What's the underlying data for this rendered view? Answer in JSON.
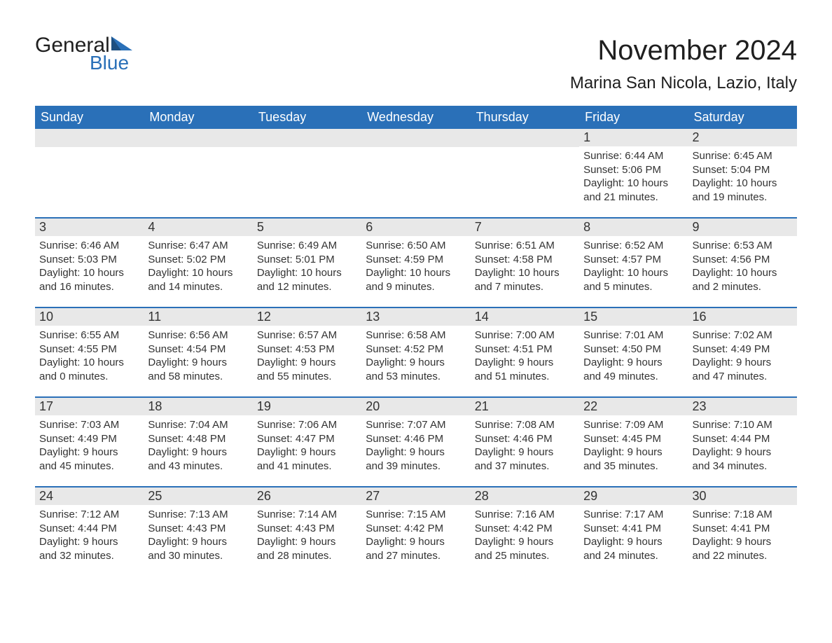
{
  "logo": {
    "word1": "General",
    "word2": "Blue"
  },
  "title": "November 2024",
  "location": "Marina San Nicola, Lazio, Italy",
  "colors": {
    "header_bg": "#2a70b8",
    "header_text": "#ffffff",
    "daynum_bg": "#e8e8e8",
    "rule": "#2a70b8",
    "body_text": "#333333",
    "page_bg": "#ffffff",
    "logo_blue": "#2a70b8"
  },
  "day_names": [
    "Sunday",
    "Monday",
    "Tuesday",
    "Wednesday",
    "Thursday",
    "Friday",
    "Saturday"
  ],
  "weeks": [
    [
      null,
      null,
      null,
      null,
      null,
      {
        "n": "1",
        "sunrise": "Sunrise: 6:44 AM",
        "sunset": "Sunset: 5:06 PM",
        "day1": "Daylight: 10 hours",
        "day2": "and 21 minutes."
      },
      {
        "n": "2",
        "sunrise": "Sunrise: 6:45 AM",
        "sunset": "Sunset: 5:04 PM",
        "day1": "Daylight: 10 hours",
        "day2": "and 19 minutes."
      }
    ],
    [
      {
        "n": "3",
        "sunrise": "Sunrise: 6:46 AM",
        "sunset": "Sunset: 5:03 PM",
        "day1": "Daylight: 10 hours",
        "day2": "and 16 minutes."
      },
      {
        "n": "4",
        "sunrise": "Sunrise: 6:47 AM",
        "sunset": "Sunset: 5:02 PM",
        "day1": "Daylight: 10 hours",
        "day2": "and 14 minutes."
      },
      {
        "n": "5",
        "sunrise": "Sunrise: 6:49 AM",
        "sunset": "Sunset: 5:01 PM",
        "day1": "Daylight: 10 hours",
        "day2": "and 12 minutes."
      },
      {
        "n": "6",
        "sunrise": "Sunrise: 6:50 AM",
        "sunset": "Sunset: 4:59 PM",
        "day1": "Daylight: 10 hours",
        "day2": "and 9 minutes."
      },
      {
        "n": "7",
        "sunrise": "Sunrise: 6:51 AM",
        "sunset": "Sunset: 4:58 PM",
        "day1": "Daylight: 10 hours",
        "day2": "and 7 minutes."
      },
      {
        "n": "8",
        "sunrise": "Sunrise: 6:52 AM",
        "sunset": "Sunset: 4:57 PM",
        "day1": "Daylight: 10 hours",
        "day2": "and 5 minutes."
      },
      {
        "n": "9",
        "sunrise": "Sunrise: 6:53 AM",
        "sunset": "Sunset: 4:56 PM",
        "day1": "Daylight: 10 hours",
        "day2": "and 2 minutes."
      }
    ],
    [
      {
        "n": "10",
        "sunrise": "Sunrise: 6:55 AM",
        "sunset": "Sunset: 4:55 PM",
        "day1": "Daylight: 10 hours",
        "day2": "and 0 minutes."
      },
      {
        "n": "11",
        "sunrise": "Sunrise: 6:56 AM",
        "sunset": "Sunset: 4:54 PM",
        "day1": "Daylight: 9 hours",
        "day2": "and 58 minutes."
      },
      {
        "n": "12",
        "sunrise": "Sunrise: 6:57 AM",
        "sunset": "Sunset: 4:53 PM",
        "day1": "Daylight: 9 hours",
        "day2": "and 55 minutes."
      },
      {
        "n": "13",
        "sunrise": "Sunrise: 6:58 AM",
        "sunset": "Sunset: 4:52 PM",
        "day1": "Daylight: 9 hours",
        "day2": "and 53 minutes."
      },
      {
        "n": "14",
        "sunrise": "Sunrise: 7:00 AM",
        "sunset": "Sunset: 4:51 PM",
        "day1": "Daylight: 9 hours",
        "day2": "and 51 minutes."
      },
      {
        "n": "15",
        "sunrise": "Sunrise: 7:01 AM",
        "sunset": "Sunset: 4:50 PM",
        "day1": "Daylight: 9 hours",
        "day2": "and 49 minutes."
      },
      {
        "n": "16",
        "sunrise": "Sunrise: 7:02 AM",
        "sunset": "Sunset: 4:49 PM",
        "day1": "Daylight: 9 hours",
        "day2": "and 47 minutes."
      }
    ],
    [
      {
        "n": "17",
        "sunrise": "Sunrise: 7:03 AM",
        "sunset": "Sunset: 4:49 PM",
        "day1": "Daylight: 9 hours",
        "day2": "and 45 minutes."
      },
      {
        "n": "18",
        "sunrise": "Sunrise: 7:04 AM",
        "sunset": "Sunset: 4:48 PM",
        "day1": "Daylight: 9 hours",
        "day2": "and 43 minutes."
      },
      {
        "n": "19",
        "sunrise": "Sunrise: 7:06 AM",
        "sunset": "Sunset: 4:47 PM",
        "day1": "Daylight: 9 hours",
        "day2": "and 41 minutes."
      },
      {
        "n": "20",
        "sunrise": "Sunrise: 7:07 AM",
        "sunset": "Sunset: 4:46 PM",
        "day1": "Daylight: 9 hours",
        "day2": "and 39 minutes."
      },
      {
        "n": "21",
        "sunrise": "Sunrise: 7:08 AM",
        "sunset": "Sunset: 4:46 PM",
        "day1": "Daylight: 9 hours",
        "day2": "and 37 minutes."
      },
      {
        "n": "22",
        "sunrise": "Sunrise: 7:09 AM",
        "sunset": "Sunset: 4:45 PM",
        "day1": "Daylight: 9 hours",
        "day2": "and 35 minutes."
      },
      {
        "n": "23",
        "sunrise": "Sunrise: 7:10 AM",
        "sunset": "Sunset: 4:44 PM",
        "day1": "Daylight: 9 hours",
        "day2": "and 34 minutes."
      }
    ],
    [
      {
        "n": "24",
        "sunrise": "Sunrise: 7:12 AM",
        "sunset": "Sunset: 4:44 PM",
        "day1": "Daylight: 9 hours",
        "day2": "and 32 minutes."
      },
      {
        "n": "25",
        "sunrise": "Sunrise: 7:13 AM",
        "sunset": "Sunset: 4:43 PM",
        "day1": "Daylight: 9 hours",
        "day2": "and 30 minutes."
      },
      {
        "n": "26",
        "sunrise": "Sunrise: 7:14 AM",
        "sunset": "Sunset: 4:43 PM",
        "day1": "Daylight: 9 hours",
        "day2": "and 28 minutes."
      },
      {
        "n": "27",
        "sunrise": "Sunrise: 7:15 AM",
        "sunset": "Sunset: 4:42 PM",
        "day1": "Daylight: 9 hours",
        "day2": "and 27 minutes."
      },
      {
        "n": "28",
        "sunrise": "Sunrise: 7:16 AM",
        "sunset": "Sunset: 4:42 PM",
        "day1": "Daylight: 9 hours",
        "day2": "and 25 minutes."
      },
      {
        "n": "29",
        "sunrise": "Sunrise: 7:17 AM",
        "sunset": "Sunset: 4:41 PM",
        "day1": "Daylight: 9 hours",
        "day2": "and 24 minutes."
      },
      {
        "n": "30",
        "sunrise": "Sunrise: 7:18 AM",
        "sunset": "Sunset: 4:41 PM",
        "day1": "Daylight: 9 hours",
        "day2": "and 22 minutes."
      }
    ]
  ]
}
